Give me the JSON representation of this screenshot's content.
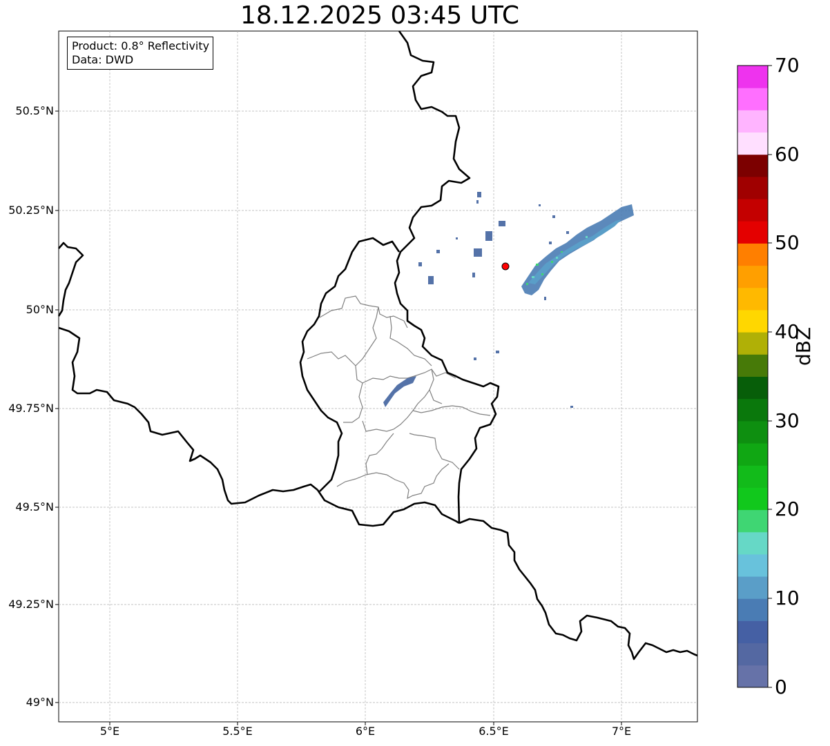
{
  "title": "18.12.2025 03:45 UTC",
  "info_box": {
    "product": "Product: 0.8° Reflectivity",
    "data": "Data: DWD"
  },
  "axes": {
    "lat_labels": [
      "50.5°N",
      "50.25°N",
      "50°N",
      "49.75°N",
      "49.5°N",
      "49.25°N",
      "49°N"
    ],
    "lon_labels": [
      "5°E",
      "5.5°E",
      "6°E",
      "6.5°E",
      "7°E"
    ]
  },
  "colorbar": {
    "title": "dBZ",
    "tick_labels": [
      "70",
      "60",
      "50",
      "40",
      "30",
      "20",
      "10",
      "0"
    ],
    "colors": [
      "#6672a8",
      "#5468a2",
      "#4560a4",
      "#4a7cb4",
      "#5a9ec8",
      "#68c2dc",
      "#66d8c6",
      "#3fd673",
      "#11c81c",
      "#12bb1a",
      "#10a713",
      "#0e8f10",
      "#0a780c",
      "#075e09",
      "#477a08",
      "#b0b006",
      "#ffd700",
      "#ffb900",
      "#ff9f00",
      "#ff7f00",
      "#e40000",
      "#c40000",
      "#a00000",
      "#7c0000",
      "#ffdfff",
      "#ffb4ff",
      "#ff6fff",
      "#ee33ee"
    ]
  },
  "radar_site_color": "#ff0000"
}
